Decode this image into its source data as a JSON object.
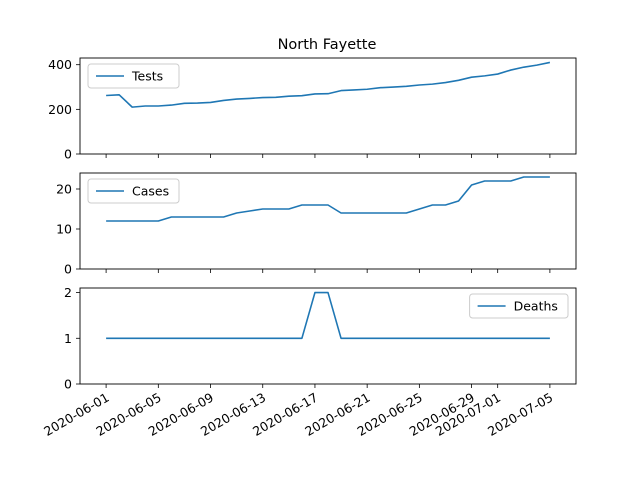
{
  "chart_data": {
    "type": "line",
    "title": "North Fayette",
    "line_color": "#1f77b4",
    "x": [
      "2020-06-01",
      "2020-06-02",
      "2020-06-03",
      "2020-06-04",
      "2020-06-05",
      "2020-06-06",
      "2020-06-07",
      "2020-06-08",
      "2020-06-09",
      "2020-06-10",
      "2020-06-11",
      "2020-06-12",
      "2020-06-13",
      "2020-06-14",
      "2020-06-15",
      "2020-06-16",
      "2020-06-17",
      "2020-06-18",
      "2020-06-19",
      "2020-06-20",
      "2020-06-21",
      "2020-06-22",
      "2020-06-23",
      "2020-06-24",
      "2020-06-25",
      "2020-06-26",
      "2020-06-27",
      "2020-06-28",
      "2020-06-29",
      "2020-06-30",
      "2020-07-01",
      "2020-07-02",
      "2020-07-03",
      "2020-07-04",
      "2020-07-05"
    ],
    "xticks": [
      "2020-06-01",
      "2020-06-05",
      "2020-06-09",
      "2020-06-13",
      "2020-06-17",
      "2020-06-21",
      "2020-06-25",
      "2020-06-29",
      "2020-07-01",
      "2020-07-05"
    ],
    "xlim": [
      "2020-05-30",
      "2020-07-07"
    ],
    "panels": [
      {
        "series_name": "Tests",
        "legend": "upper-left",
        "ylim": [
          0,
          430
        ],
        "yticks": [
          0,
          200,
          400
        ],
        "values": [
          262,
          265,
          210,
          215,
          215,
          219,
          227,
          228,
          231,
          240,
          246,
          249,
          253,
          254,
          259,
          261,
          269,
          270,
          284,
          287,
          290,
          297,
          300,
          303,
          309,
          313,
          320,
          330,
          344,
          350,
          358,
          376,
          389,
          398,
          410
        ]
      },
      {
        "series_name": "Cases",
        "legend": "upper-left",
        "ylim": [
          0,
          24
        ],
        "yticks": [
          0,
          10,
          20
        ],
        "values": [
          12,
          12,
          12,
          12,
          12,
          13,
          13,
          13,
          13,
          13,
          14,
          14.5,
          15,
          15,
          15,
          16,
          16,
          16,
          14,
          14,
          14,
          14,
          14,
          14,
          15,
          16,
          16,
          17,
          21,
          22,
          22,
          22,
          23,
          23,
          23
        ]
      },
      {
        "series_name": "Deaths",
        "legend": "upper-right",
        "ylim": [
          0,
          2.1
        ],
        "yticks": [
          0,
          1,
          2
        ],
        "values": [
          1,
          1,
          1,
          1,
          1,
          1,
          1,
          1,
          1,
          1,
          1,
          1,
          1,
          1,
          1,
          1,
          2,
          2,
          1,
          1,
          1,
          1,
          1,
          1,
          1,
          1,
          1,
          1,
          1,
          1,
          1,
          1,
          1,
          1,
          1
        ]
      }
    ]
  }
}
